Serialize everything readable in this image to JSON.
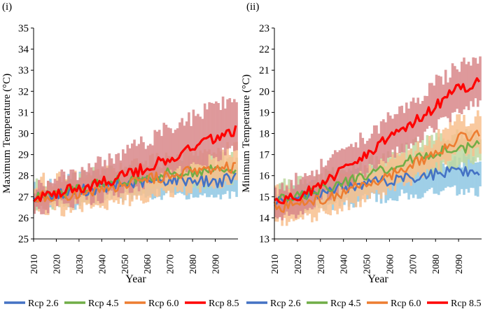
{
  "chart_data": [
    {
      "type": "line",
      "panel_label": "(i)",
      "title": "",
      "xlabel": "Year",
      "ylabel": "Maximum Temperature (°C)",
      "xlim": [
        2010,
        2100
      ],
      "ylim": [
        25,
        35
      ],
      "xticks": [
        "2010",
        "2020",
        "2030",
        "2040",
        "2050",
        "2060",
        "2070",
        "2080",
        "2090"
      ],
      "yticks": [
        "25",
        "26",
        "27",
        "28",
        "29",
        "30",
        "31",
        "32",
        "33",
        "34",
        "35"
      ],
      "grid": false,
      "x": [
        2010,
        2020,
        2030,
        2040,
        2050,
        2060,
        2070,
        2080,
        2090,
        2099
      ],
      "series": [
        {
          "name": "Rcp 2.6",
          "color": "#4472C4",
          "band_color": "#8FC7E3",
          "values": [
            27.0,
            27.1,
            27.3,
            27.4,
            27.6,
            27.7,
            27.8,
            27.8,
            27.7,
            27.9
          ],
          "band_low": [
            26.6,
            26.6,
            26.7,
            26.9,
            27.0,
            27.1,
            27.1,
            27.1,
            27.0,
            27.2
          ],
          "band_high": [
            27.5,
            27.6,
            27.8,
            27.9,
            28.1,
            28.2,
            28.3,
            28.3,
            28.2,
            28.4
          ]
        },
        {
          "name": "Rcp 4.5",
          "color": "#70AD47",
          "band_color": "#BFD9A3",
          "values": [
            27.0,
            27.1,
            27.4,
            27.6,
            27.8,
            27.9,
            28.1,
            28.2,
            28.3,
            28.3
          ],
          "band_low": [
            26.6,
            26.7,
            26.9,
            27.1,
            27.3,
            27.4,
            27.5,
            27.6,
            27.7,
            27.8
          ],
          "band_high": [
            27.5,
            27.6,
            27.9,
            28.1,
            28.3,
            28.4,
            28.6,
            28.7,
            28.8,
            28.9
          ]
        },
        {
          "name": "Rcp 6.0",
          "color": "#ED7D31",
          "band_color": "#F8C08F",
          "values": [
            27.0,
            27.0,
            27.2,
            27.3,
            27.5,
            27.8,
            28.0,
            28.2,
            28.4,
            28.4
          ],
          "band_low": [
            26.4,
            26.3,
            26.5,
            26.6,
            26.8,
            27.0,
            27.2,
            27.4,
            27.6,
            27.6
          ],
          "band_high": [
            27.7,
            27.8,
            28.0,
            28.1,
            28.3,
            28.6,
            28.8,
            29.0,
            29.2,
            29.3
          ]
        },
        {
          "name": "Rcp 8.5",
          "color": "#FF0000",
          "band_color": "#D9888A",
          "values": [
            26.9,
            27.2,
            27.4,
            27.7,
            28.0,
            28.4,
            28.8,
            29.3,
            29.8,
            30.2
          ],
          "band_low": [
            26.3,
            26.6,
            26.8,
            27.0,
            27.3,
            27.6,
            28.0,
            28.4,
            28.9,
            29.3
          ],
          "band_high": [
            27.5,
            27.9,
            28.2,
            28.6,
            29.1,
            29.7,
            30.3,
            30.8,
            31.3,
            31.6
          ]
        }
      ]
    },
    {
      "type": "line",
      "panel_label": "(ii)",
      "title": "",
      "xlabel": "Year",
      "ylabel": "Minimum Temperature (°C)",
      "xlim": [
        2010,
        2100
      ],
      "ylim": [
        13,
        23
      ],
      "xticks": [
        "2010",
        "2020",
        "2030",
        "2040",
        "2050",
        "2060",
        "2070",
        "2080",
        "2090"
      ],
      "yticks": [
        "13",
        "14",
        "15",
        "16",
        "17",
        "18",
        "19",
        "20",
        "21",
        "22",
        "23"
      ],
      "grid": false,
      "x": [
        2010,
        2020,
        2030,
        2040,
        2050,
        2060,
        2070,
        2080,
        2090,
        2099
      ],
      "series": [
        {
          "name": "Rcp 2.6",
          "color": "#4472C4",
          "band_color": "#8FC7E3",
          "values": [
            14.8,
            15.0,
            15.2,
            15.4,
            15.6,
            15.8,
            15.9,
            16.1,
            16.2,
            16.1
          ],
          "band_low": [
            14.3,
            14.4,
            14.6,
            14.7,
            14.9,
            15.0,
            15.1,
            15.2,
            15.3,
            15.3
          ],
          "band_high": [
            15.3,
            15.5,
            15.7,
            15.9,
            16.1,
            16.3,
            16.4,
            16.6,
            16.7,
            16.7
          ]
        },
        {
          "name": "Rcp 4.5",
          "color": "#70AD47",
          "band_color": "#BFD9A3",
          "values": [
            14.8,
            15.0,
            15.3,
            15.6,
            16.0,
            16.4,
            16.8,
            17.1,
            17.3,
            17.4
          ],
          "band_low": [
            14.3,
            14.4,
            14.7,
            15.0,
            15.3,
            15.7,
            16.0,
            16.3,
            16.5,
            16.6
          ],
          "band_high": [
            15.4,
            15.6,
            15.9,
            16.2,
            16.6,
            17.0,
            17.4,
            17.7,
            17.9,
            18.0
          ]
        },
        {
          "name": "Rcp 6.0",
          "color": "#ED7D31",
          "band_color": "#F8C08F",
          "values": [
            14.5,
            14.6,
            14.9,
            15.2,
            15.6,
            16.0,
            16.5,
            17.1,
            17.8,
            18.0
          ],
          "band_low": [
            13.8,
            13.9,
            14.2,
            14.5,
            14.9,
            15.3,
            15.8,
            16.4,
            17.0,
            17.2
          ],
          "band_high": [
            15.2,
            15.3,
            15.6,
            15.9,
            16.3,
            16.7,
            17.2,
            17.8,
            18.6,
            18.9
          ]
        },
        {
          "name": "Rcp 8.5",
          "color": "#FF0000",
          "band_color": "#D9888A",
          "values": [
            14.6,
            15.0,
            15.6,
            16.3,
            17.0,
            17.8,
            18.5,
            19.3,
            20.1,
            20.5
          ],
          "band_low": [
            14.0,
            14.3,
            14.9,
            15.5,
            16.2,
            16.9,
            17.6,
            18.3,
            19.1,
            19.5
          ],
          "band_high": [
            15.3,
            15.8,
            16.4,
            17.1,
            17.9,
            18.7,
            19.5,
            20.4,
            21.2,
            21.7
          ]
        }
      ]
    }
  ]
}
